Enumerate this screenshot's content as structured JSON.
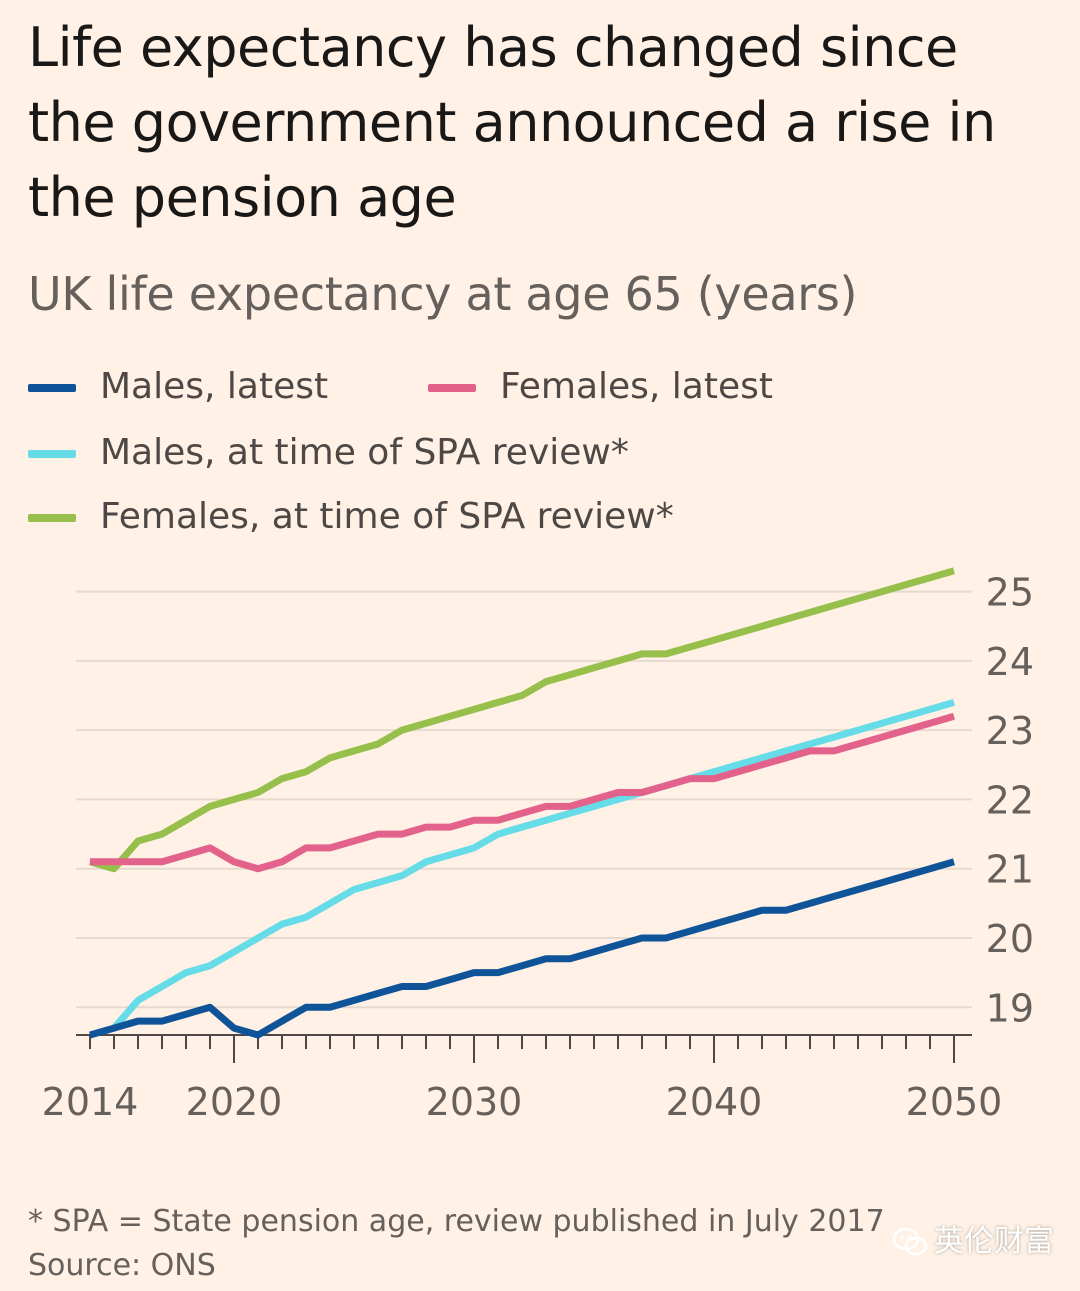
{
  "title": "Life expectancy has changed since the government announced a rise in the pension age",
  "subtitle": "UK life expectancy at age 65 (years)",
  "footnote": "* SPA = State pension age, review published in July 2017",
  "source": "Source: ONS",
  "watermark": "英伦财富",
  "chart_data": {
    "type": "line",
    "title": "UK life expectancy at age 65 (years)",
    "xlabel": "",
    "ylabel": "",
    "xlim": [
      2014,
      2050
    ],
    "ylim": [
      18.6,
      25.6
    ],
    "y_ticks": [
      19,
      20,
      21,
      22,
      23,
      24,
      25
    ],
    "x_tick_labels": [
      "2014",
      "2020",
      "2030",
      "2040",
      "2050"
    ],
    "y_axis_position": "right",
    "grid": true,
    "legend": "top-left",
    "series": [
      {
        "name": "Males, latest",
        "color": "#0F5499",
        "x": [
          2014,
          2015,
          2016,
          2017,
          2018,
          2019,
          2020,
          2021,
          2022,
          2023,
          2024,
          2025,
          2026,
          2027,
          2028,
          2029,
          2030,
          2031,
          2032,
          2033,
          2034,
          2035,
          2036,
          2037,
          2038,
          2039,
          2040,
          2041,
          2042,
          2043,
          2044,
          2045,
          2046,
          2047,
          2048,
          2049,
          2050
        ],
        "values": [
          18.6,
          18.7,
          18.8,
          18.8,
          18.9,
          19.0,
          18.7,
          18.6,
          18.8,
          19.0,
          19.0,
          19.1,
          19.2,
          19.3,
          19.3,
          19.4,
          19.5,
          19.5,
          19.6,
          19.7,
          19.7,
          19.8,
          19.9,
          20.0,
          20.0,
          20.1,
          20.2,
          20.3,
          20.4,
          20.4,
          20.5,
          20.6,
          20.7,
          20.8,
          20.9,
          21.0,
          21.1
        ]
      },
      {
        "name": "Females, latest",
        "color": "#E3628C",
        "x": [
          2014,
          2015,
          2016,
          2017,
          2018,
          2019,
          2020,
          2021,
          2022,
          2023,
          2024,
          2025,
          2026,
          2027,
          2028,
          2029,
          2030,
          2031,
          2032,
          2033,
          2034,
          2035,
          2036,
          2037,
          2038,
          2039,
          2040,
          2041,
          2042,
          2043,
          2044,
          2045,
          2046,
          2047,
          2048,
          2049,
          2050
        ],
        "values": [
          21.1,
          21.1,
          21.1,
          21.1,
          21.2,
          21.3,
          21.1,
          21.0,
          21.1,
          21.3,
          21.3,
          21.4,
          21.5,
          21.5,
          21.6,
          21.6,
          21.7,
          21.7,
          21.8,
          21.9,
          21.9,
          22.0,
          22.1,
          22.1,
          22.2,
          22.3,
          22.3,
          22.4,
          22.5,
          22.6,
          22.7,
          22.7,
          22.8,
          22.9,
          23.0,
          23.1,
          23.2
        ]
      },
      {
        "name": "Males, at time of SPA review*",
        "color": "#66DCE8",
        "x": [
          2015,
          2016,
          2017,
          2018,
          2019,
          2020,
          2021,
          2022,
          2023,
          2024,
          2025,
          2026,
          2027,
          2028,
          2029,
          2030,
          2031,
          2032,
          2033,
          2034,
          2035,
          2036,
          2037,
          2038,
          2039,
          2040,
          2041,
          2042,
          2043,
          2044,
          2045,
          2046,
          2047,
          2048,
          2049,
          2050
        ],
        "values": [
          18.7,
          19.1,
          19.3,
          19.5,
          19.6,
          19.8,
          20.0,
          20.2,
          20.3,
          20.5,
          20.7,
          20.8,
          20.9,
          21.1,
          21.2,
          21.3,
          21.5,
          21.6,
          21.7,
          21.8,
          21.9,
          22.0,
          22.1,
          22.2,
          22.3,
          22.4,
          22.5,
          22.6,
          22.7,
          22.8,
          22.9,
          23.0,
          23.1,
          23.2,
          23.3,
          23.4
        ]
      },
      {
        "name": "Females, at time of SPA review*",
        "color": "#96BF4B",
        "x": [
          2014,
          2015,
          2016,
          2017,
          2018,
          2019,
          2020,
          2021,
          2022,
          2023,
          2024,
          2025,
          2026,
          2027,
          2028,
          2029,
          2030,
          2031,
          2032,
          2033,
          2034,
          2035,
          2036,
          2037,
          2038,
          2039,
          2040,
          2041,
          2042,
          2043,
          2044,
          2045,
          2046,
          2047,
          2048,
          2049,
          2050
        ],
        "values": [
          21.1,
          21.0,
          21.4,
          21.5,
          21.7,
          21.9,
          22.0,
          22.1,
          22.3,
          22.4,
          22.6,
          22.7,
          22.8,
          23.0,
          23.1,
          23.2,
          23.3,
          23.4,
          23.5,
          23.7,
          23.8,
          23.9,
          24.0,
          24.1,
          24.1,
          24.2,
          24.3,
          24.4,
          24.5,
          24.6,
          24.7,
          24.8,
          24.9,
          25.0,
          25.1,
          25.2,
          25.3
        ]
      }
    ]
  }
}
